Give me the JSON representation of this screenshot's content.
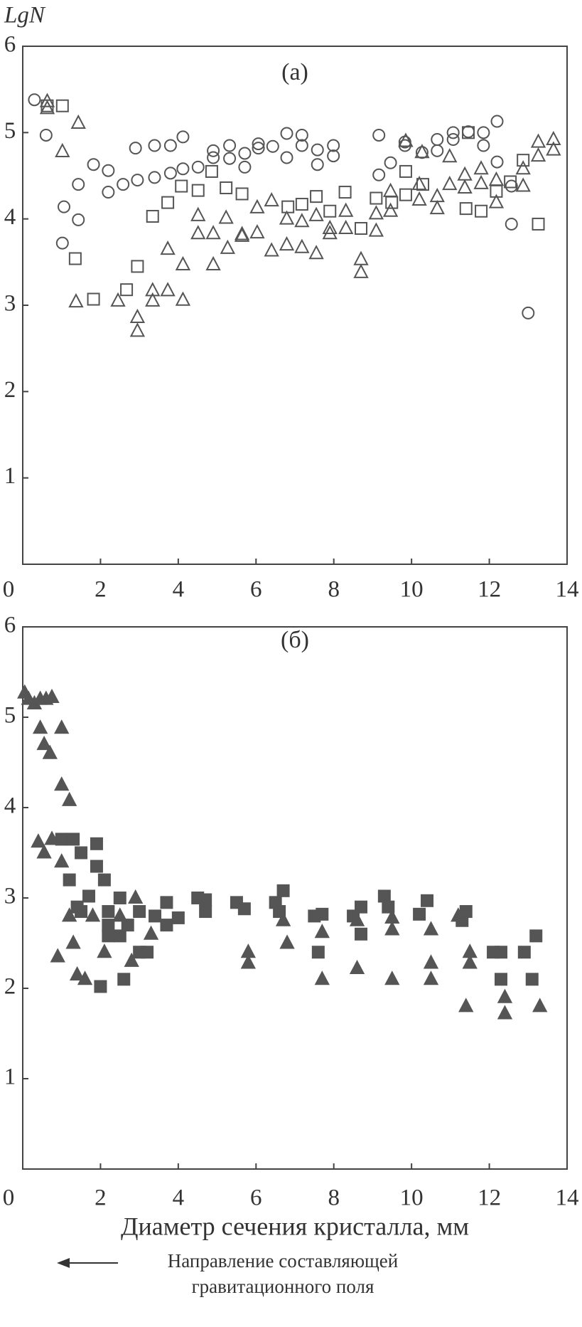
{
  "chart_data": [
    {
      "type": "scatter",
      "y_label": "LgN",
      "annotation": "(а)",
      "xlim": [
        0,
        14
      ],
      "ylim": [
        0,
        6
      ],
      "xticks": [
        0,
        2,
        4,
        6,
        8,
        10,
        12,
        14
      ],
      "yticks": [
        1,
        2,
        3,
        4,
        5,
        6
      ],
      "series": [
        {
          "marker": "circle",
          "filled": false,
          "color": "#555555",
          "x": [
            0.3,
            0.6,
            1.06,
            1.02,
            1.43,
            1.43,
            1.82,
            2.2,
            2.2,
            2.58,
            2.9,
            2.95,
            3.39,
            3.39,
            3.8,
            3.8,
            4.12,
            4.12,
            4.51,
            4.9,
            4.9,
            5.32,
            5.32,
            5.71,
            5.71,
            6.06,
            6.06,
            6.43,
            6.79,
            6.79,
            7.18,
            7.18,
            7.58,
            7.58,
            7.99,
            7.99,
            9.16,
            9.16,
            9.46,
            9.83,
            9.83,
            10.27,
            10.66,
            10.66,
            11.07,
            11.07,
            11.46,
            11.85,
            11.85,
            12.2,
            12.2,
            12.57,
            12.57,
            13.0
          ],
          "values": [
            5.38,
            4.97,
            4.14,
            3.72,
            4.4,
            3.99,
            4.63,
            4.56,
            4.31,
            4.4,
            4.82,
            4.45,
            4.85,
            4.48,
            4.85,
            4.53,
            4.95,
            4.58,
            4.6,
            4.79,
            4.71,
            4.85,
            4.7,
            4.76,
            4.6,
            4.87,
            4.82,
            4.84,
            4.99,
            4.71,
            4.97,
            4.85,
            4.8,
            4.63,
            4.85,
            4.73,
            4.97,
            4.51,
            4.65,
            4.89,
            4.85,
            4.77,
            4.92,
            4.79,
            5.0,
            4.92,
            5.01,
            5.0,
            4.85,
            5.13,
            4.66,
            4.38,
            3.94,
            2.91
          ]
        },
        {
          "marker": "square",
          "filled": false,
          "color": "#555555",
          "x": [
            0.63,
            1.02,
            1.35,
            1.82,
            2.67,
            2.95,
            3.34,
            3.73,
            4.08,
            4.51,
            4.86,
            5.23,
            5.64,
            6.82,
            7.18,
            7.55,
            7.9,
            8.29,
            8.7,
            9.09,
            9.49,
            9.85,
            9.85,
            10.29,
            11.46,
            11.4,
            11.79,
            12.18,
            12.54,
            12.87,
            13.26
          ],
          "values": [
            5.31,
            5.31,
            3.54,
            3.07,
            3.18,
            3.45,
            4.03,
            4.19,
            4.38,
            4.33,
            4.55,
            4.36,
            4.29,
            4.14,
            4.17,
            4.26,
            4.09,
            4.31,
            3.89,
            4.24,
            4.19,
            4.28,
            4.55,
            4.4,
            5.0,
            4.12,
            4.09,
            4.32,
            4.43,
            4.68,
            3.94
          ]
        },
        {
          "marker": "triangle",
          "filled": false,
          "color": "#555555",
          "x": [
            0.63,
            0.63,
            1.02,
            1.43,
            1.37,
            2.45,
            2.95,
            2.95,
            3.34,
            3.34,
            3.73,
            3.73,
            4.12,
            4.12,
            4.51,
            4.51,
            4.9,
            4.9,
            5.23,
            5.27,
            5.64,
            5.64,
            6.03,
            6.03,
            6.4,
            6.4,
            6.79,
            6.79,
            7.18,
            7.18,
            7.55,
            7.55,
            7.9,
            7.9,
            8.31,
            8.31,
            8.7,
            8.7,
            9.09,
            9.09,
            9.46,
            9.46,
            9.85,
            10.2,
            10.2,
            10.27,
            10.66,
            10.66,
            10.98,
            10.98,
            11.37,
            11.37,
            11.79,
            11.79,
            12.18,
            12.18,
            12.87,
            12.87,
            13.26,
            13.26,
            13.65,
            13.65
          ],
          "values": [
            5.36,
            5.28,
            4.78,
            5.11,
            3.04,
            3.05,
            2.86,
            2.7,
            3.17,
            3.05,
            3.17,
            3.65,
            3.06,
            3.47,
            4.04,
            3.83,
            3.83,
            3.47,
            4.01,
            3.66,
            3.82,
            3.8,
            4.13,
            3.84,
            4.21,
            3.63,
            4.0,
            3.7,
            3.97,
            3.67,
            4.04,
            3.6,
            3.89,
            3.83,
            4.09,
            3.89,
            3.53,
            3.38,
            4.06,
            3.86,
            4.32,
            4.09,
            4.9,
            4.4,
            4.22,
            4.77,
            4.12,
            4.26,
            4.72,
            4.4,
            4.51,
            4.36,
            4.58,
            4.41,
            4.45,
            4.19,
            4.58,
            4.38,
            4.89,
            4.73,
            4.92,
            4.8
          ]
        }
      ]
    },
    {
      "type": "scatter",
      "annotation": "(б)",
      "x_label": "Диаметр сечения кристалла, мм",
      "note": [
        "Направление составляющей",
        "гравитационного поля"
      ],
      "xlim": [
        0,
        14
      ],
      "ylim": [
        0,
        6
      ],
      "xticks": [
        0,
        2,
        4,
        6,
        8,
        10,
        12,
        14
      ],
      "yticks": [
        1,
        2,
        3,
        4,
        5,
        6
      ],
      "series": [
        {
          "marker": "triangle",
          "filled": true,
          "color": "#555555",
          "x": [
            0.05,
            0.15,
            0.3,
            0.45,
            0.6,
            0.75,
            0.7,
            0.55,
            0.45,
            1.0,
            1.0,
            1.2,
            0.4,
            0.55,
            0.75,
            1.0,
            1.3,
            1.4,
            1.6,
            0.9,
            1.2,
            1.8,
            2.1,
            2.5,
            2.8,
            2.9,
            3.3,
            5.8,
            5.8,
            6.8,
            6.7,
            7.7,
            7.7,
            8.6,
            8.6,
            9.5,
            9.5,
            9.5,
            10.5,
            10.5,
            10.5,
            11.2,
            11.4,
            11.5,
            11.5,
            12.4,
            12.4,
            13.3
          ],
          "values": [
            5.27,
            5.2,
            5.15,
            5.2,
            5.2,
            5.22,
            4.6,
            4.7,
            4.88,
            4.88,
            4.25,
            4.08,
            3.62,
            3.5,
            3.65,
            3.4,
            2.5,
            2.15,
            2.1,
            2.35,
            2.8,
            2.8,
            2.4,
            2.8,
            2.3,
            3.0,
            2.6,
            2.4,
            2.28,
            2.5,
            2.75,
            2.62,
            2.1,
            2.22,
            2.75,
            2.1,
            2.65,
            2.78,
            2.65,
            2.28,
            2.1,
            2.8,
            1.8,
            2.4,
            2.28,
            1.9,
            1.72,
            1.8
          ]
        },
        {
          "marker": "square",
          "filled": true,
          "color": "#555555",
          "x": [
            1.0,
            1.3,
            1.5,
            1.9,
            1.9,
            2.1,
            1.2,
            1.7,
            1.4,
            1.5,
            2.0,
            2.6,
            2.2,
            2.2,
            2.2,
            2.5,
            2.5,
            2.7,
            3.0,
            3.0,
            3.2,
            3.4,
            3.7,
            3.7,
            4.0,
            4.5,
            4.7,
            4.7,
            5.5,
            5.7,
            6.5,
            6.7,
            6.6,
            7.6,
            7.5,
            7.7,
            8.5,
            8.7,
            8.7,
            9.3,
            9.4,
            10.2,
            10.4,
            11.3,
            11.4,
            12.1,
            12.3,
            12.3,
            12.9,
            13.1,
            13.2
          ],
          "values": [
            3.65,
            3.65,
            3.5,
            3.6,
            3.35,
            3.2,
            3.2,
            3.02,
            2.9,
            2.85,
            2.02,
            2.1,
            2.85,
            2.7,
            2.58,
            3.0,
            2.58,
            2.7,
            2.85,
            2.4,
            2.4,
            2.8,
            2.95,
            2.7,
            2.78,
            3.0,
            2.98,
            2.85,
            2.95,
            2.88,
            2.95,
            3.08,
            2.85,
            2.4,
            2.8,
            2.82,
            2.8,
            2.9,
            2.6,
            3.02,
            2.9,
            2.82,
            2.97,
            2.75,
            2.85,
            2.4,
            2.4,
            2.1,
            2.4,
            2.1,
            2.58
          ]
        }
      ]
    }
  ]
}
